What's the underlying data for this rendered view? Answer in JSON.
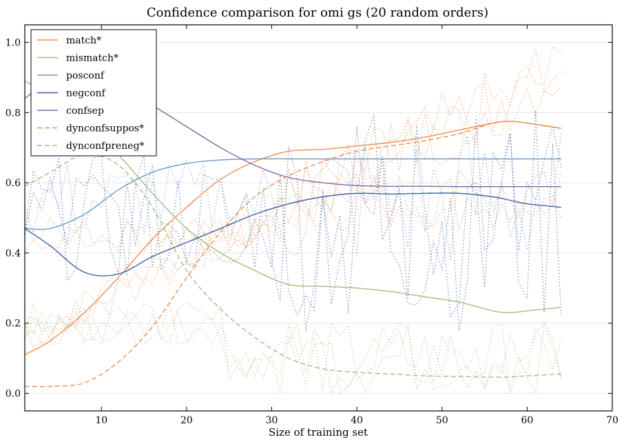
{
  "chart_data": {
    "type": "line",
    "title": "Confidence comparison for omi gs (20 random orders)",
    "xlabel": "Size of training set",
    "ylabel": "",
    "xlim": [
      1,
      70
    ],
    "ylim": [
      -0.05,
      1.05
    ],
    "xticks": [
      10,
      20,
      30,
      40,
      50,
      60,
      70
    ],
    "yticks": [
      0.0,
      0.2,
      0.4,
      0.6,
      0.8,
      1.0
    ],
    "xtick_labels": [
      "10",
      "20",
      "30",
      "40",
      "50",
      "60",
      "70"
    ],
    "ytick_labels": [
      "0.0",
      "0.2",
      "0.4",
      "0.6",
      "0.8",
      "1.0"
    ],
    "grid": "horizontal",
    "legend_position": "top-left",
    "x": [
      1,
      4,
      8,
      12,
      16,
      20,
      24,
      28,
      32,
      36,
      40,
      44,
      48,
      52,
      56,
      58,
      60,
      64
    ],
    "series": [
      {
        "name": "match*",
        "color": "#ee8d4f",
        "style": "solid",
        "values": [
          0.11,
          0.15,
          0.23,
          0.33,
          0.44,
          0.53,
          0.61,
          0.66,
          0.69,
          0.695,
          0.705,
          0.715,
          0.73,
          0.75,
          0.77,
          0.775,
          0.77,
          0.755
        ]
      },
      {
        "name": "mismatch*",
        "color": "#a6bc7e",
        "style": "solid",
        "values": [
          0.89,
          0.85,
          0.78,
          0.68,
          0.57,
          0.47,
          0.4,
          0.35,
          0.31,
          0.305,
          0.3,
          0.29,
          0.275,
          0.26,
          0.235,
          0.23,
          0.235,
          0.245
        ]
      },
      {
        "name": "posconf",
        "color": "#6b9ac4",
        "style": "solid",
        "values": [
          0.47,
          0.47,
          0.51,
          0.58,
          0.63,
          0.655,
          0.665,
          0.668,
          0.668,
          0.668,
          0.668,
          0.668,
          0.668,
          0.668,
          0.668,
          0.668,
          0.668,
          0.668
        ]
      },
      {
        "name": "negconf",
        "color": "#3e5ca6",
        "style": "solid",
        "values": [
          0.47,
          0.42,
          0.345,
          0.34,
          0.39,
          0.43,
          0.47,
          0.51,
          0.54,
          0.56,
          0.57,
          0.568,
          0.57,
          0.57,
          0.56,
          0.55,
          0.54,
          0.53
        ]
      },
      {
        "name": "confsep",
        "color": "#7d66a8",
        "style": "solid",
        "values": [
          0.84,
          0.89,
          0.9,
          0.87,
          0.82,
          0.76,
          0.7,
          0.65,
          0.615,
          0.6,
          0.592,
          0.59,
          0.59,
          0.589,
          0.589,
          0.589,
          0.589,
          0.589
        ]
      },
      {
        "name": "dynconfsuppos*",
        "color": "#ee8d4f",
        "style": "dashed",
        "values": [
          0.02,
          0.02,
          0.03,
          0.09,
          0.19,
          0.33,
          0.46,
          0.56,
          0.62,
          0.66,
          0.69,
          0.705,
          0.72,
          0.74,
          0.77,
          0.775,
          0.77,
          0.755
        ]
      },
      {
        "name": "dynconfpreneg*",
        "color": "#a6bc7e",
        "style": "dashed",
        "values": [
          0.59,
          0.63,
          0.68,
          0.65,
          0.53,
          0.35,
          0.24,
          0.16,
          0.1,
          0.07,
          0.06,
          0.055,
          0.05,
          0.048,
          0.046,
          0.047,
          0.05,
          0.055
        ]
      }
    ]
  }
}
